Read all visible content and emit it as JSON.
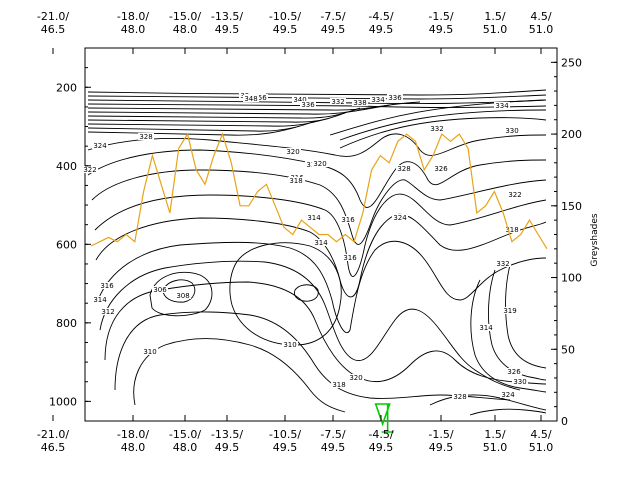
{
  "chart_data": {
    "type": "contour",
    "title": "",
    "x_ticks_top": [
      {
        "label": "-21.0/\n46.5"
      },
      {
        "label": "-18.0/\n48.0"
      },
      {
        "label": "-15.0/\n48.0"
      },
      {
        "label": "-13.5/\n49.5"
      },
      {
        "label": "-10.5/\n49.5"
      },
      {
        "label": "-7.5/\n49.5"
      },
      {
        "label": "-4.5/\n49.5"
      },
      {
        "label": "-1.5/\n49.5"
      },
      {
        "label": "1.5/\n51.0"
      },
      {
        "label": "4.5/\n51.0"
      }
    ],
    "x_ticks_bottom": [
      {
        "label": "-21.0/\n46.5"
      },
      {
        "label": "-18.0/\n48.0"
      },
      {
        "label": "-15.0/\n48.0"
      },
      {
        "label": "-13.5/\n49.5"
      },
      {
        "label": "-10.5/\n49.5"
      },
      {
        "label": "-7.5/\n49.5"
      },
      {
        "label": "-4.5/\n49.5"
      },
      {
        "label": "-1.5/\n49.5"
      },
      {
        "label": "1.5/\n51.0"
      },
      {
        "label": "4.5/\n51.0"
      }
    ],
    "y_left_ticks": [
      "200",
      "400",
      "600",
      "800",
      "1000"
    ],
    "y_left_range": [
      1050,
      100
    ],
    "y_right_label": "Greyshades",
    "y_right_ticks": [
      "0",
      "50",
      "100",
      "150",
      "200",
      "250"
    ],
    "y_right_range": [
      0,
      260
    ],
    "contour_levels": [
      310,
      312,
      314,
      316,
      318,
      320,
      322,
      324,
      326,
      328,
      330,
      332,
      334,
      336,
      338,
      340,
      344,
      348,
      352,
      356
    ],
    "contour_labels": [
      "336",
      "344",
      "352",
      "356",
      "348",
      "340",
      "336",
      "332",
      "338",
      "334",
      "336",
      "334",
      "332",
      "330",
      "328",
      "324",
      "322",
      "320",
      "318",
      "316",
      "314",
      "328",
      "326",
      "322",
      "320",
      "318",
      "324",
      "316",
      "310",
      "306",
      "308",
      "310",
      "312",
      "314",
      "316",
      "318",
      "320",
      "314",
      "316",
      "318",
      "324",
      "328",
      "326",
      "330",
      "332",
      "314",
      "319"
    ],
    "line_series": {
      "name": "",
      "color": "#e8a317",
      "values": [
        [
          -21.0,
          122
        ],
        [
          -20.5,
          125
        ],
        [
          -20.0,
          128
        ],
        [
          -19.5,
          125
        ],
        [
          -19.0,
          130
        ],
        [
          -18.5,
          125
        ],
        [
          -18.0,
          160
        ],
        [
          -17.5,
          185
        ],
        [
          -17.0,
          165
        ],
        [
          -16.5,
          145
        ],
        [
          -16.0,
          190
        ],
        [
          -15.5,
          200
        ],
        [
          -15.0,
          175
        ],
        [
          -14.5,
          165
        ],
        [
          -14.0,
          185
        ],
        [
          -13.5,
          200
        ],
        [
          -13.0,
          180
        ],
        [
          -12.5,
          150
        ],
        [
          -12.0,
          150
        ],
        [
          -11.5,
          160
        ],
        [
          -11.0,
          165
        ],
        [
          -10.5,
          150
        ],
        [
          -10.0,
          135
        ],
        [
          -9.5,
          130
        ],
        [
          -9.0,
          140
        ],
        [
          -8.5,
          135
        ],
        [
          -8.0,
          130
        ],
        [
          -7.5,
          130
        ],
        [
          -7.0,
          125
        ],
        [
          -6.5,
          130
        ],
        [
          -6.0,
          125
        ],
        [
          -5.5,
          145
        ],
        [
          -5.0,
          175
        ],
        [
          -4.5,
          185
        ],
        [
          -4.0,
          180
        ],
        [
          -3.5,
          195
        ],
        [
          -3.0,
          200
        ],
        [
          -2.5,
          195
        ],
        [
          -2.0,
          175
        ],
        [
          -1.5,
          185
        ],
        [
          -1.0,
          200
        ],
        [
          -0.5,
          195
        ],
        [
          0.0,
          200
        ],
        [
          0.5,
          190
        ],
        [
          1.0,
          145
        ],
        [
          1.5,
          150
        ],
        [
          2.0,
          160
        ],
        [
          2.5,
          145
        ],
        [
          3.0,
          125
        ],
        [
          3.5,
          130
        ],
        [
          4.0,
          140
        ],
        [
          4.5,
          130
        ],
        [
          5.0,
          120
        ]
      ]
    },
    "marker_symbol": "triangle-down",
    "marker_x": -4.2
  }
}
